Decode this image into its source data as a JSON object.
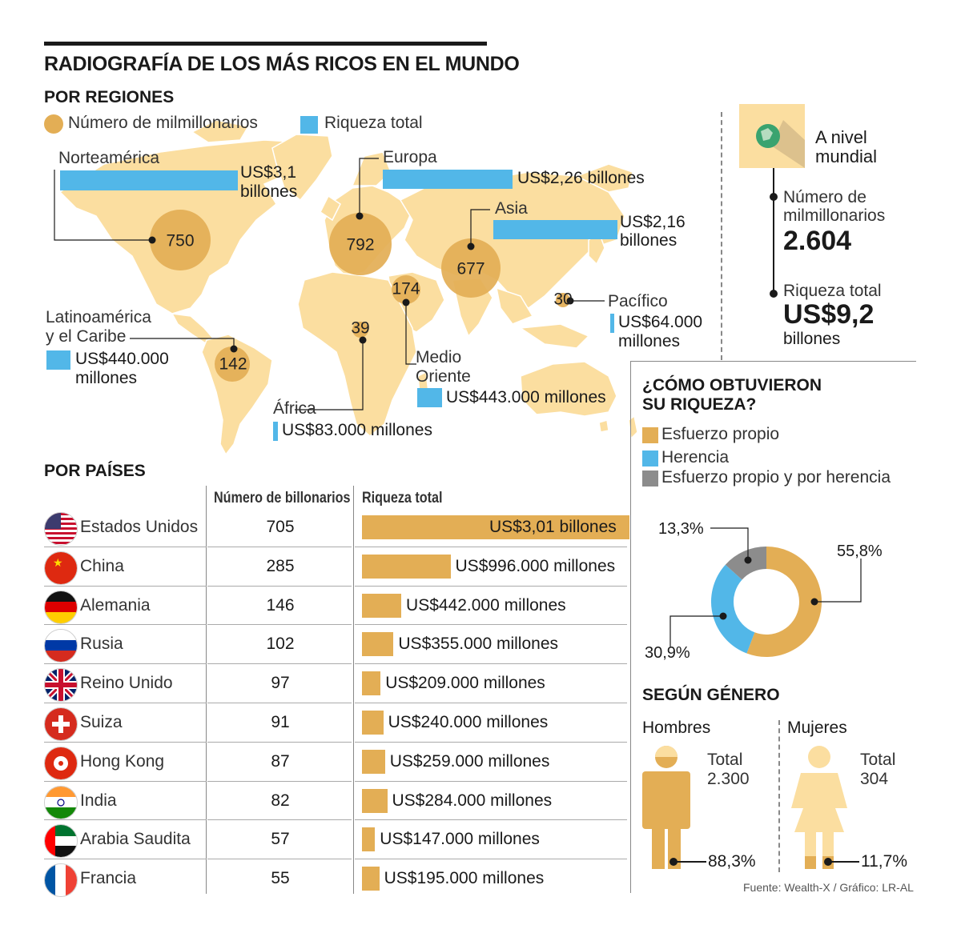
{
  "title": "RADIOGRAFÍA DE LOS MÁS RICOS EN EL MUNDO",
  "regions": {
    "heading": "POR REGIONES",
    "legend": {
      "bubbles": "Número de milmillonarios",
      "bars": "Riqueza total"
    },
    "items": [
      {
        "name": "Norteamérica",
        "count": "750",
        "wealth_1": "US$3,1",
        "wealth_2": "billones"
      },
      {
        "name": "Europa",
        "count": "792",
        "wealth_1": "US$2,26 billones",
        "wealth_2": ""
      },
      {
        "name": "Asia",
        "count": "677",
        "wealth_1": "US$2,16",
        "wealth_2": "billones"
      },
      {
        "name_1": "Medio",
        "name_2": "Oriente",
        "count": "174",
        "wealth_1": "US$443.000 millones"
      },
      {
        "name": "Pacífico",
        "count": "30",
        "wealth_1": "US$64.000",
        "wealth_2": "millones"
      },
      {
        "name": "África",
        "count": "39",
        "wealth_1": "US$83.000 millones"
      },
      {
        "name_1": "Latinoamérica",
        "name_2": "y el Caribe",
        "count": "142",
        "wealth_1": "US$440.000",
        "wealth_2": "millones"
      }
    ]
  },
  "global": {
    "title_1": "A nivel",
    "title_2": "mundial",
    "count_label_1": "Número de",
    "count_label_2": "milmillonarios",
    "count_value": "2.604",
    "wealth_label": "Riqueza total",
    "wealth_value": "US$9,2",
    "wealth_unit": "billones"
  },
  "countries": {
    "heading": "POR PAÍSES",
    "col_count": "Número de billonarios",
    "col_wealth": "Riqueza total"
  },
  "source": "Fuente: Wealth-X  / Gráfico: LR-AL",
  "colors": {
    "gold": "#e3ae55",
    "blue": "#52b7e8",
    "gray": "#8c8c8c",
    "land": "#fbdea0",
    "ink": "#1a1a1a"
  },
  "chart_data": [
    {
      "type": "bar",
      "title": "POR PAÍSES",
      "categories": [
        "Estados Unidos",
        "China",
        "Alemania",
        "Rusia",
        "Reino Unido",
        "Suiza",
        "Hong Kong",
        "India",
        "Arabia Saudita",
        "Francia"
      ],
      "series": [
        {
          "name": "Número de billonarios",
          "values": [
            705,
            285,
            146,
            102,
            97,
            91,
            87,
            82,
            57,
            55
          ]
        },
        {
          "name": "Riqueza total",
          "values": [
            3010000,
            996000,
            442000,
            355000,
            209000,
            240000,
            259000,
            284000,
            147000,
            195000
          ],
          "labels": [
            "US$3,01 billones",
            "US$996.000 millones",
            "US$442.000 millones",
            "US$355.000 millones",
            "US$209.000 millones",
            "US$240.000 millones",
            "US$259.000 millones",
            "US$284.000 millones",
            "US$147.000 millones",
            "US$195.000 millones"
          ]
        }
      ],
      "flags": [
        "us",
        "cn",
        "de",
        "ru",
        "gb",
        "ch",
        "hk",
        "in",
        "sa",
        "fr"
      ]
    },
    {
      "type": "pie",
      "title": "¿CÓMO OBTUVIERON SU RIQUEZA?",
      "categories": [
        "Esfuerzo propio",
        "Herencia",
        "Esfuerzo propio y por herencia"
      ],
      "values": [
        55.8,
        30.9,
        13.3
      ],
      "labels": [
        "55,8%",
        "30,9%",
        "13,3%"
      ],
      "colors": [
        "#e3ae55",
        "#52b7e8",
        "#8c8c8c"
      ]
    },
    {
      "type": "bar",
      "title": "SEGÚN GÉNERO",
      "categories": [
        "Hombres",
        "Mujeres"
      ],
      "totals_label": "Total",
      "totals": [
        "2.300",
        "304"
      ],
      "values": [
        88.3,
        11.7
      ],
      "labels": [
        "88,3%",
        "11,7%"
      ]
    }
  ]
}
